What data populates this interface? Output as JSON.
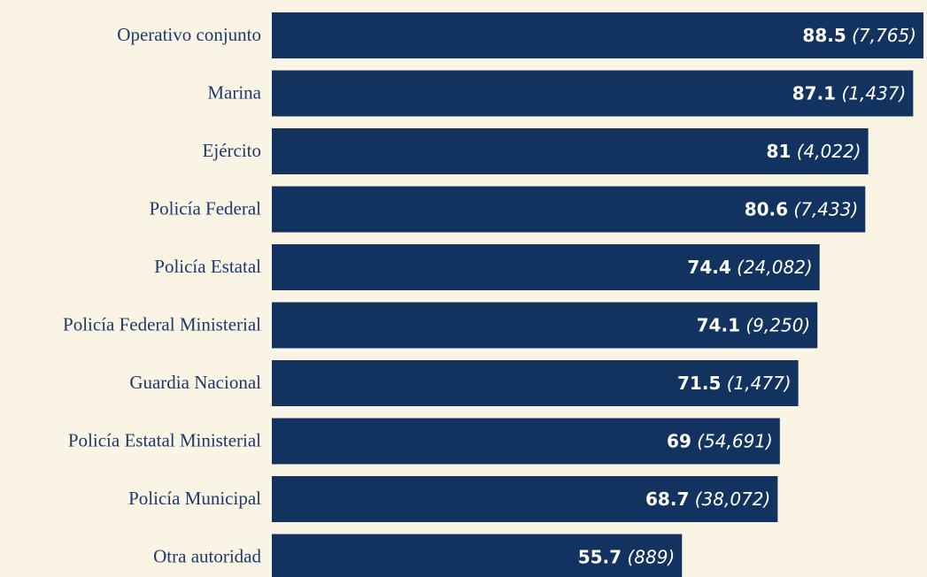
{
  "chart_data": {
    "type": "bar",
    "categories": [
      "Operativo conjunto",
      "Marina",
      "Ejército",
      "Policía Federal",
      "Policía Estatal",
      "Policía Federal Ministerial",
      "Guardia Nacional",
      "Policía Estatal Ministerial",
      "Policía Municipal",
      "Otra autoridad"
    ],
    "values": [
      88.5,
      87.1,
      81,
      80.6,
      74.4,
      74.1,
      71.5,
      69,
      68.7,
      55.7
    ],
    "counts": [
      "(7,765)",
      "(1,437)",
      "(4,022)",
      "(7,433)",
      "(24,082)",
      "(9,250)",
      "(1,477)",
      "(54,691)",
      "(38,072)",
      "(889)"
    ],
    "color": "#12335f"
  }
}
